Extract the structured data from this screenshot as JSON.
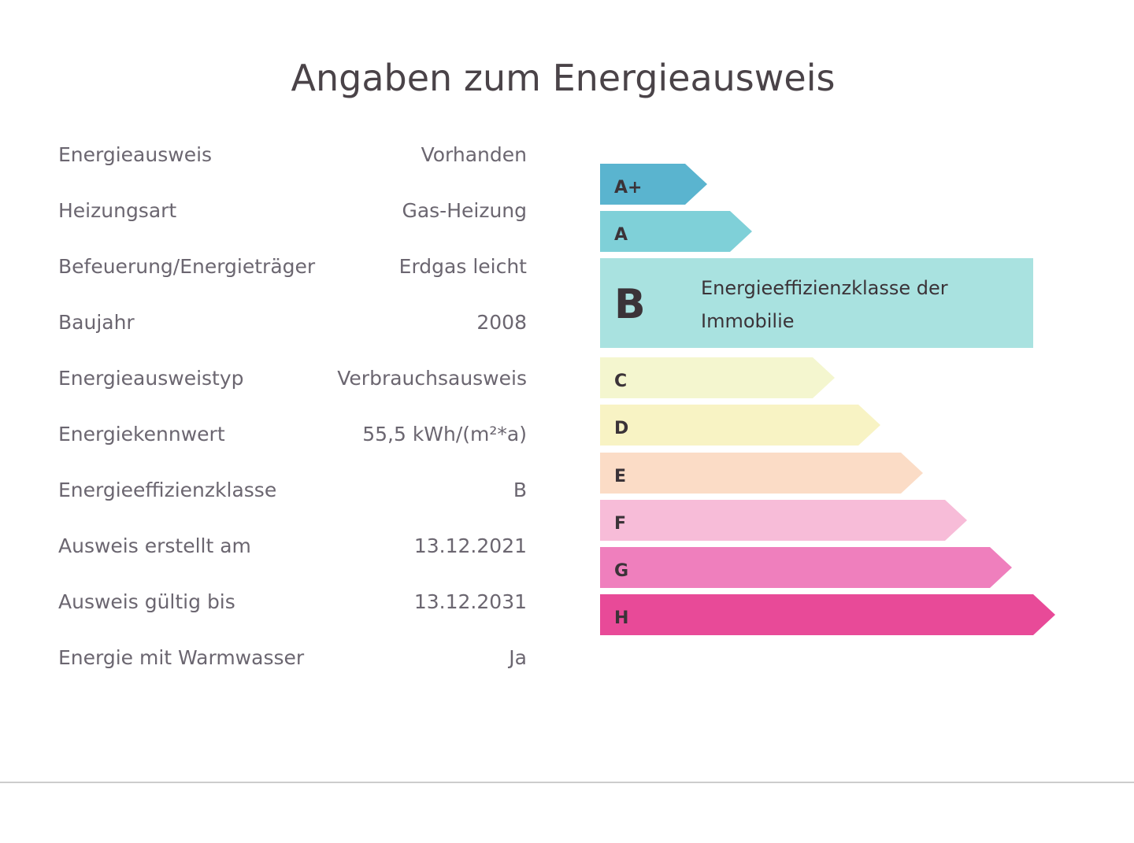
{
  "title": "Angaben zum Energieausweis",
  "rows": [
    [
      "Energieausweis",
      "Vorhanden"
    ],
    [
      "Heizungsart",
      "Gas-Heizung"
    ],
    [
      "Befeuerung/Energieträger",
      "Erdgas leicht"
    ],
    [
      "Baujahr",
      "2008"
    ],
    [
      "Energieausweistyp",
      "Verbrauchsausweis"
    ],
    [
      "Energiekennwert",
      "55,5 kWh/(m²*a)"
    ],
    [
      "Energieeffizienzklasse",
      "B"
    ],
    [
      "Ausweis erstellt am",
      "13.12.2021"
    ],
    [
      "Ausweis gültig bis",
      "13.12.2031"
    ],
    [
      "Energie mit Warmwasser",
      "Ja"
    ]
  ],
  "scale": {
    "classes": [
      "A+",
      "A",
      "B",
      "C",
      "D",
      "E",
      "F",
      "G",
      "H"
    ],
    "highlight_label": "Energieeffizienzklasse der Immobilie"
  }
}
